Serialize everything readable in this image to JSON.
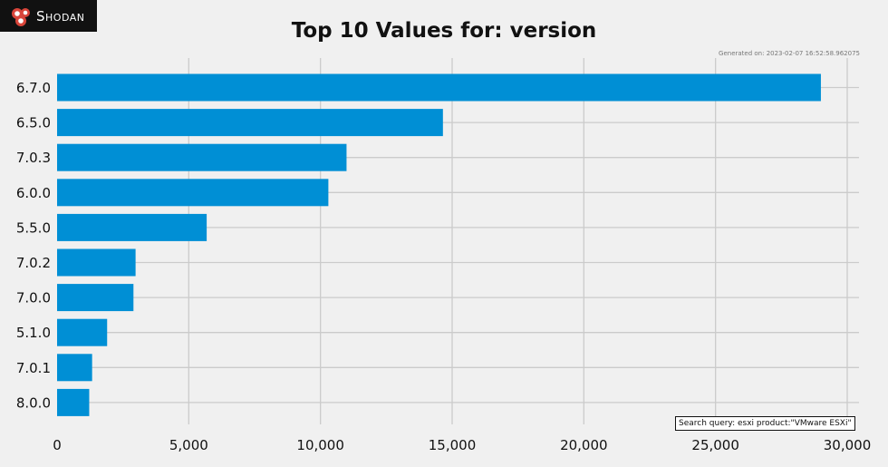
{
  "brand": {
    "name": "Shodan"
  },
  "title": "Top 10 Values for: version",
  "generated": "Generated on: 2023-02-07 16:52:58.962075",
  "search_query": "Search query: esxi product:\"VMware ESXi\"",
  "colors": {
    "bar": "#008fd5",
    "grid": "#cbcbcb",
    "background": "#f0f0f0"
  },
  "chart_data": {
    "type": "bar",
    "orientation": "horizontal",
    "title": "Top 10 Values for: version",
    "categories": [
      "6.7.0",
      "6.5.0",
      "7.0.3",
      "6.0.0",
      "5.5.0",
      "7.0.2",
      "7.0.0",
      "5.1.0",
      "7.0.1",
      "8.0.0"
    ],
    "values": [
      29000,
      14650,
      10990,
      10300,
      5680,
      2980,
      2900,
      1900,
      1330,
      1220
    ],
    "xlim": [
      0,
      30000
    ],
    "xticks": [
      0,
      5000,
      10000,
      15000,
      20000,
      25000,
      30000
    ],
    "xtick_labels": [
      "0",
      "5,000",
      "10,000",
      "15,000",
      "20,000",
      "25,000",
      "30,000"
    ],
    "grid": true
  }
}
